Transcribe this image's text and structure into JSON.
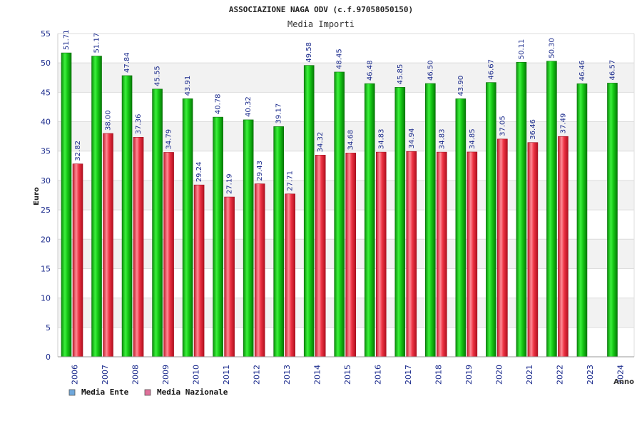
{
  "chart_data": {
    "type": "bar",
    "title": "ASSOCIAZIONE NAGA ODV (c.f.97058050150)",
    "subtitle": "Media Importi",
    "xlabel": "Anno",
    "ylabel": "Euro",
    "ylim": [
      0,
      55
    ],
    "yticks": [
      "0",
      "5",
      "10",
      "15",
      "20",
      "25",
      "30",
      "35",
      "40",
      "45",
      "50",
      "55"
    ],
    "grid": true,
    "legend_position": "bottom-left",
    "categories": [
      "2006",
      "2007",
      "2008",
      "2009",
      "2010",
      "2011",
      "2012",
      "2013",
      "2014",
      "2015",
      "2016",
      "2017",
      "2018",
      "2019",
      "2020",
      "2021",
      "2022",
      "2023",
      "2024"
    ],
    "series": [
      {
        "name": "Media Ente",
        "legend_color": "#6fa8dc",
        "bar_color": "#16c816",
        "values": [
          51.71,
          51.17,
          47.84,
          45.55,
          43.91,
          40.78,
          40.32,
          39.17,
          49.58,
          48.45,
          46.48,
          45.85,
          46.5,
          43.9,
          46.67,
          50.11,
          50.3,
          46.46,
          46.57
        ],
        "labels": [
          "51.71",
          "51.17",
          "47.84",
          "45.55",
          "43.91",
          "40.78",
          "40.32",
          "39.17",
          "49.58",
          "48.45",
          "46.48",
          "45.85",
          "46.50",
          "43.90",
          "46.67",
          "50.11",
          "50.30",
          "46.46",
          "46.57"
        ]
      },
      {
        "name": "Media Nazionale",
        "legend_color": "#e0709a",
        "bar_color": "#ee3344",
        "values": [
          32.82,
          38.0,
          37.36,
          34.79,
          29.24,
          27.19,
          29.43,
          27.71,
          34.32,
          34.68,
          34.83,
          34.94,
          34.83,
          34.85,
          37.05,
          36.46,
          37.49,
          null,
          null
        ],
        "labels": [
          "32.82",
          "38.00",
          "37.36",
          "34.79",
          "29.24",
          "27.19",
          "29.43",
          "27.71",
          "34.32",
          "34.68",
          "34.83",
          "34.94",
          "34.83",
          "34.85",
          "37.05",
          "36.46",
          "37.49",
          null,
          null
        ]
      }
    ]
  }
}
